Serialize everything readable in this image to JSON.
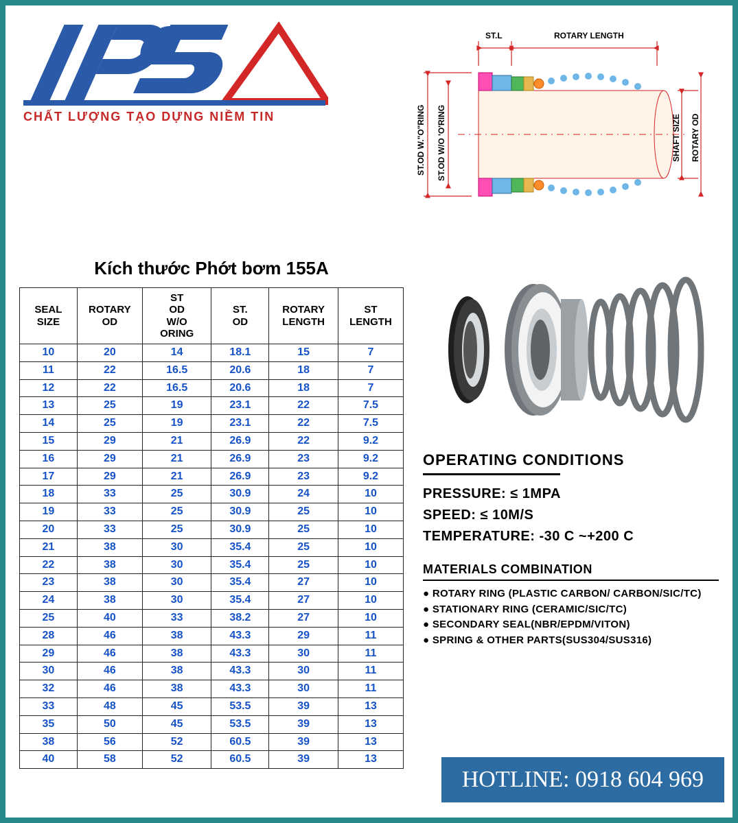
{
  "brand": {
    "logo_text": "IPS",
    "logo_color_primary": "#2a5aa8",
    "logo_color_triangle": "#d32626",
    "slogan": "CHẤT LƯỢNG TẠO DỰNG NIỀM TIN",
    "slogan_color": "#c62828"
  },
  "page": {
    "border_color": "#2a8a8a",
    "background": "#ffffff"
  },
  "diagram": {
    "labels": {
      "st_l": "ST.L",
      "rotary_length": "ROTARY LENGTH",
      "st_od_wo_oring": "ST.OD W/O 'O'RING",
      "st_od_with_oring": "ST.OD W.\"O\"RING",
      "shaft_size": "SHAFT SIZE",
      "rotary_od": "ROTARY OD"
    },
    "colors": {
      "outline": "#d32626",
      "shaft_fill": "#fff3e8",
      "ring1": "#ff4fb5",
      "ring2": "#6fb7e6",
      "ring3": "#4fb65a",
      "ring4": "#ff8c2b",
      "bead": "#6fb7e6",
      "dim_extension": "#d32626"
    }
  },
  "table": {
    "title": "Kích thước Phớt bơm 155A",
    "title_fontsize": 26,
    "cell_text_color": "#1552c6",
    "header_text_color": "#000000",
    "border_color": "#222222",
    "columns": [
      "SEAL SIZE",
      "ROTARY OD",
      "ST OD W/O ORING",
      "ST. OD",
      "ROTARY LENGTH",
      "ST LENGTH"
    ],
    "col_widths_pct": [
      15,
      17,
      18,
      15,
      18,
      17
    ],
    "rows": [
      [
        "10",
        "20",
        "14",
        "18.1",
        "15",
        "7"
      ],
      [
        "11",
        "22",
        "16.5",
        "20.6",
        "18",
        "7"
      ],
      [
        "12",
        "22",
        "16.5",
        "20.6",
        "18",
        "7"
      ],
      [
        "13",
        "25",
        "19",
        "23.1",
        "22",
        "7.5"
      ],
      [
        "14",
        "25",
        "19",
        "23.1",
        "22",
        "7.5"
      ],
      [
        "15",
        "29",
        "21",
        "26.9",
        "22",
        "9.2"
      ],
      [
        "16",
        "29",
        "21",
        "26.9",
        "23",
        "9.2"
      ],
      [
        "17",
        "29",
        "21",
        "26.9",
        "23",
        "9.2"
      ],
      [
        "18",
        "33",
        "25",
        "30.9",
        "24",
        "10"
      ],
      [
        "19",
        "33",
        "25",
        "30.9",
        "25",
        "10"
      ],
      [
        "20",
        "33",
        "25",
        "30.9",
        "25",
        "10"
      ],
      [
        "21",
        "38",
        "30",
        "35.4",
        "25",
        "10"
      ],
      [
        "22",
        "38",
        "30",
        "35.4",
        "25",
        "10"
      ],
      [
        "23",
        "38",
        "30",
        "35.4",
        "27",
        "10"
      ],
      [
        "24",
        "38",
        "30",
        "35.4",
        "27",
        "10"
      ],
      [
        "25",
        "40",
        "33",
        "38.2",
        "27",
        "10"
      ],
      [
        "28",
        "46",
        "38",
        "43.3",
        "29",
        "11"
      ],
      [
        "29",
        "46",
        "38",
        "43.3",
        "30",
        "11"
      ],
      [
        "30",
        "46",
        "38",
        "43.3",
        "30",
        "11"
      ],
      [
        "32",
        "46",
        "38",
        "43.3",
        "30",
        "11"
      ],
      [
        "33",
        "48",
        "45",
        "53.5",
        "39",
        "13"
      ],
      [
        "35",
        "50",
        "45",
        "53.5",
        "39",
        "13"
      ],
      [
        "38",
        "56",
        "52",
        "60.5",
        "39",
        "13"
      ],
      [
        "40",
        "58",
        "52",
        "60.5",
        "39",
        "13"
      ]
    ]
  },
  "product_image": {
    "description": "Mechanical pump seal 155A — stationary ring (black), rotary face + cup (metallic grey with white ceramic face), conical compression spring (stainless)",
    "colors": {
      "stationary_ring": "#2a2a2a",
      "ceramic_face": "#f3f3f3",
      "metal_body": "#8a8f93",
      "metal_highlight": "#d7dbde",
      "spring": "#707579"
    }
  },
  "operating_conditions": {
    "heading": "OPERATING CONDITIONS",
    "pressure_label": "PRESSURE:",
    "pressure_value": "≤ 1MPA",
    "speed_label": "SPEED:",
    "speed_value": "≤ 10M/S",
    "temperature_label": "TEMPERATURE:",
    "temperature_value": "-30 C  ~+200 C"
  },
  "materials": {
    "heading": "MATERIALS COMBINATION",
    "items": [
      "ROTARY RING (PLASTIC CARBON/ CARBON/SIC/TC)",
      "STATIONARY RING (CERAMIC/SIC/TC)",
      "SECONDARY SEAL(NBR/EPDM/VITON)",
      "SPRING & OTHER PARTS(SUS304/SUS316)"
    ]
  },
  "hotline": {
    "label": "HOTLINE:",
    "number": "0918 604 969",
    "background": "#2d6ba3",
    "text_color": "#ffffff"
  }
}
